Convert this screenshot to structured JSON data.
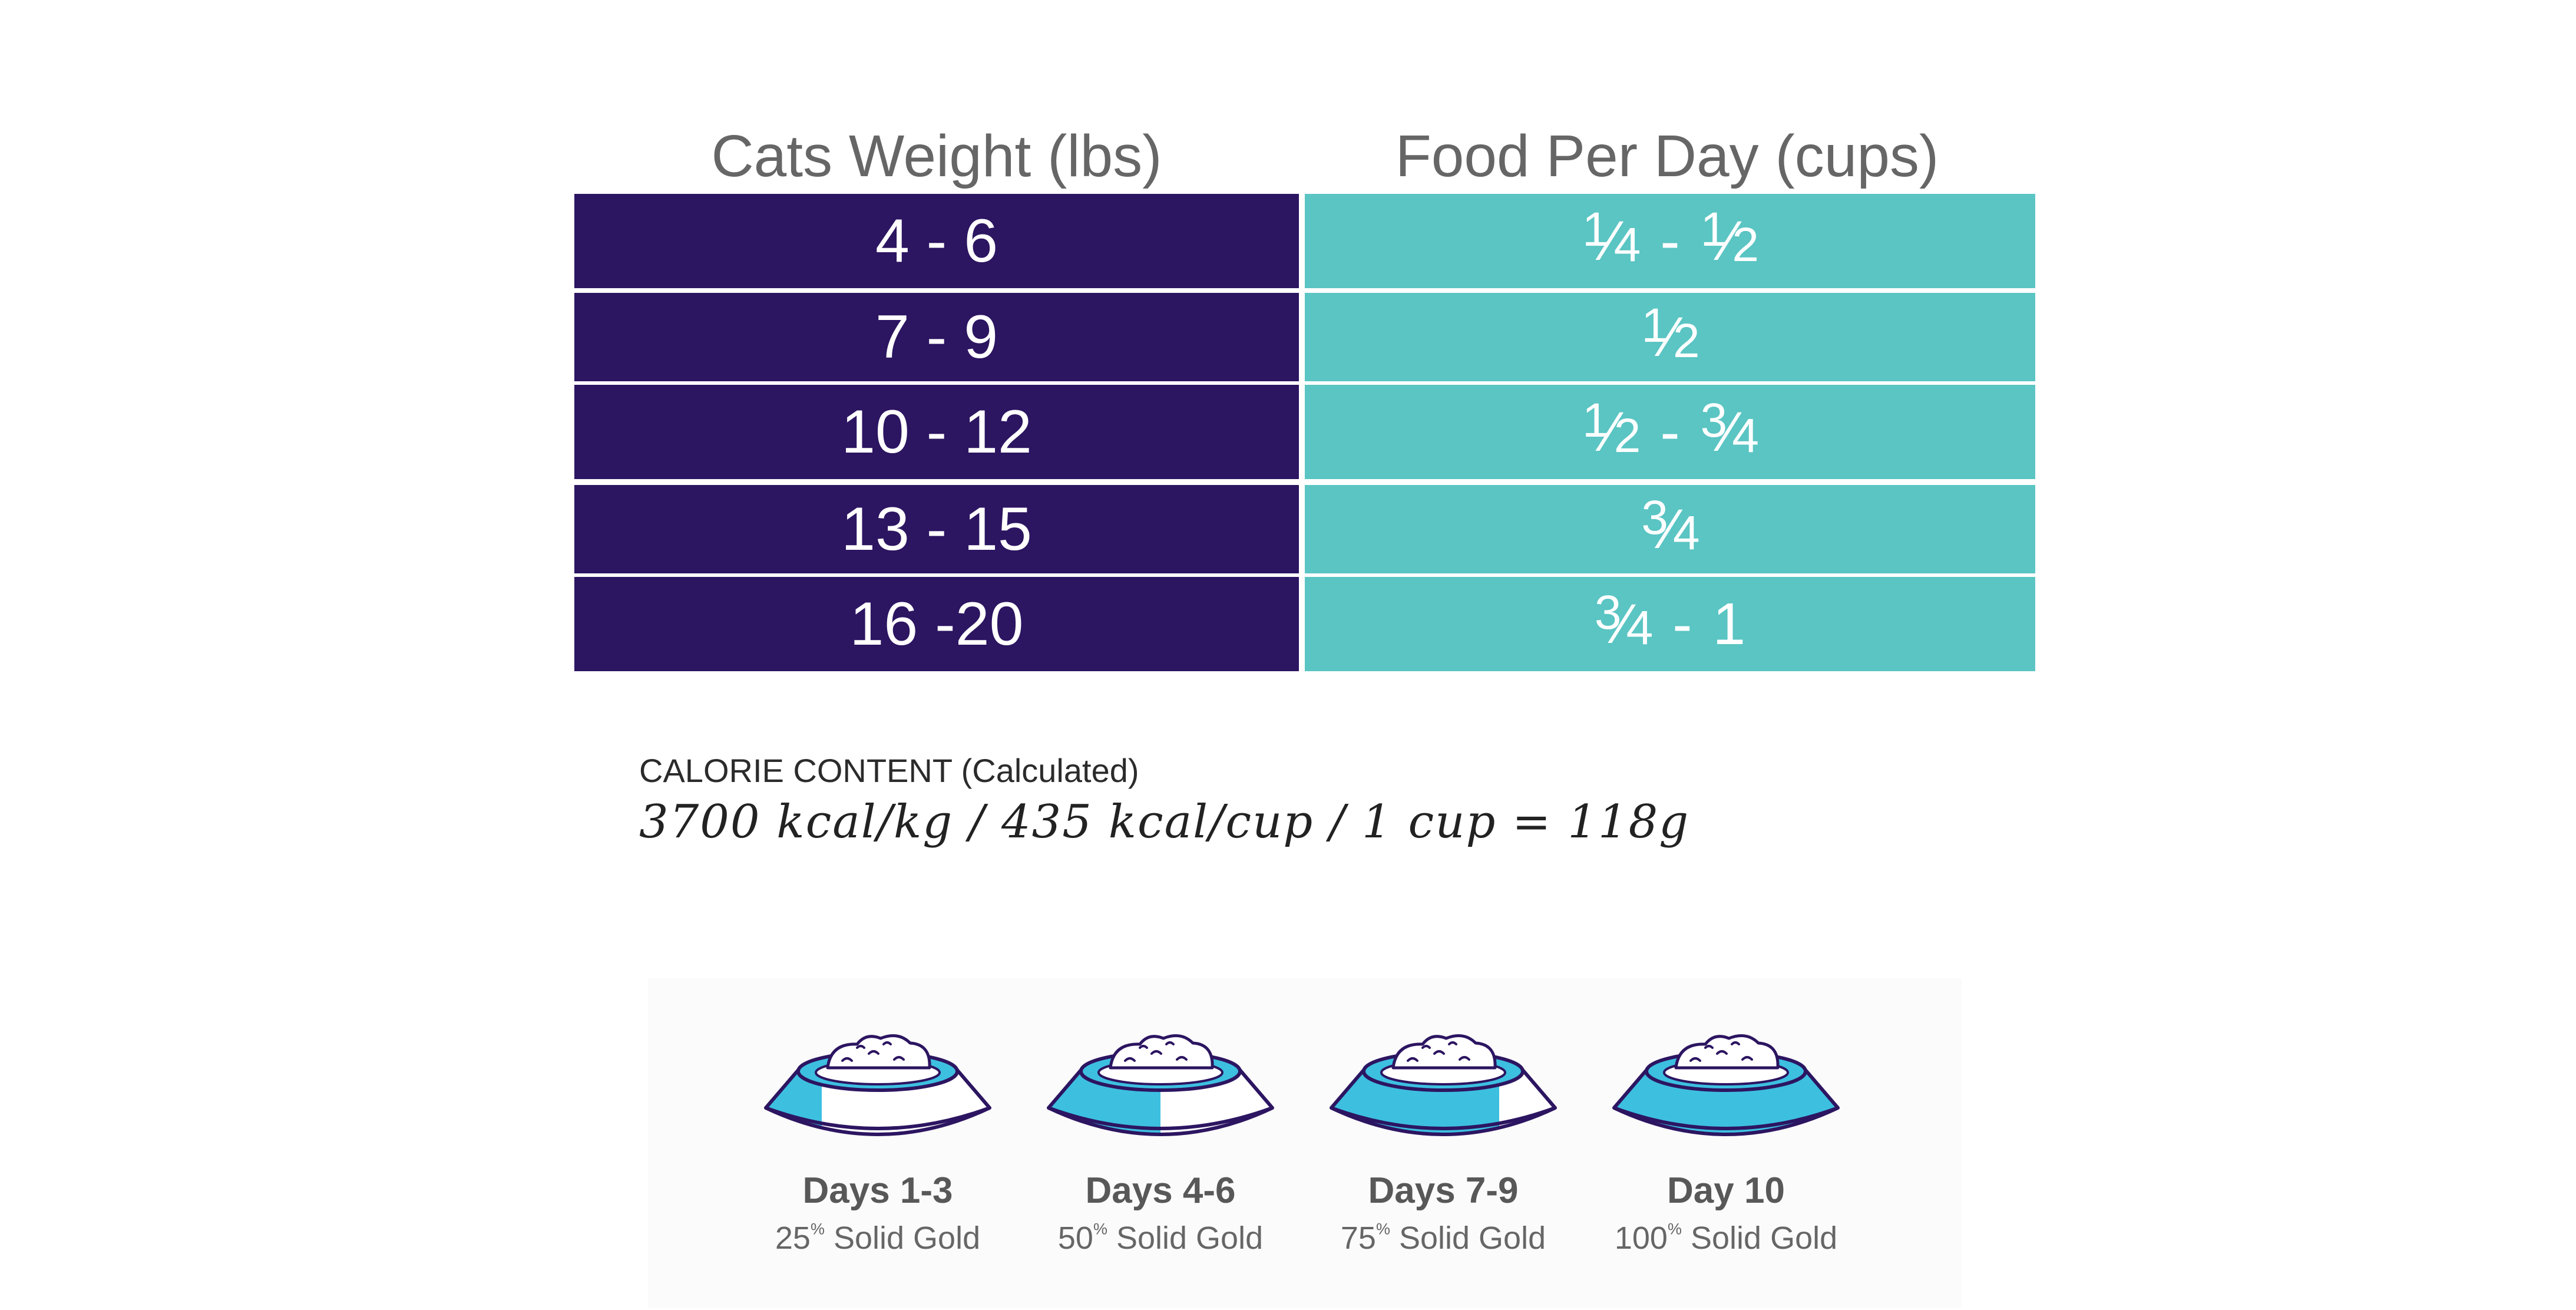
{
  "table": {
    "header_weight": "Cats Weight (lbs)",
    "header_food": "Food Per Day (cups)",
    "rows": [
      {
        "weight": "4 - 6",
        "food": [
          {
            "num": "1",
            "den": "4"
          },
          {
            "num": "1",
            "den": "2"
          }
        ]
      },
      {
        "weight": "7 - 9",
        "food": [
          {
            "num": "1",
            "den": "2"
          }
        ]
      },
      {
        "weight": "10 - 12",
        "food": [
          {
            "num": "1",
            "den": "2"
          },
          {
            "num": "3",
            "den": "4"
          }
        ]
      },
      {
        "weight": "13 - 15",
        "food": [
          {
            "num": "3",
            "den": "4"
          }
        ]
      },
      {
        "weight": "16 -20",
        "food": [
          {
            "num": "3",
            "den": "4"
          },
          {
            "whole": "1"
          }
        ]
      }
    ]
  },
  "calorie": {
    "title": "CALORIE CONTENT (Calculated)",
    "value": "3700 kcal/kg / 435 kcal/cup / 1 cup = 118g"
  },
  "transition": {
    "steps": [
      {
        "title": "Days 1-3",
        "percent": "25",
        "pct_symbol": "%",
        "label": "Solid Gold",
        "fraction": 0.25
      },
      {
        "title": "Days 4-6",
        "percent": "50",
        "pct_symbol": "%",
        "label": "Solid Gold",
        "fraction": 0.5
      },
      {
        "title": "Days 7-9",
        "percent": "75",
        "pct_symbol": "%",
        "label": "Solid Gold",
        "fraction": 0.75
      },
      {
        "title": "Day 10",
        "percent": "100",
        "pct_symbol": "%",
        "label": "Solid Gold",
        "fraction": 1.0
      }
    ]
  },
  "colors": {
    "weight_cells": "#2c1561",
    "food_cells": "#5ac5c3",
    "bowl_fill": "#3dbfe0",
    "bowl_outline": "#2c1561"
  }
}
